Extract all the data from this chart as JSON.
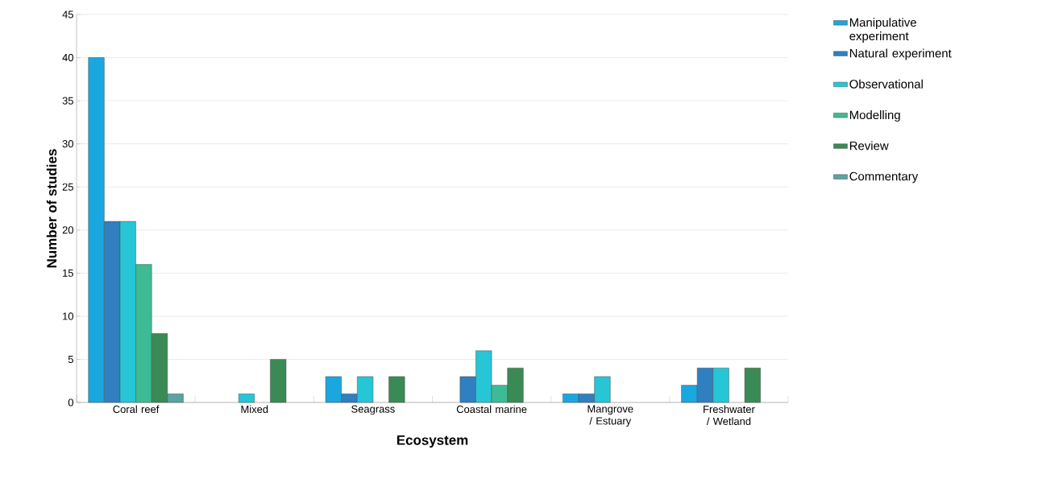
{
  "chart_data": {
    "type": "bar",
    "xlabel": "Ecosystem",
    "ylabel": "Number of studies",
    "categories": [
      "Coral reef",
      "Mixed",
      "Seagrass",
      "Coastal marine",
      "Mangrove / Estuary",
      "Freshwater / Wetland"
    ],
    "series": [
      {
        "name": "Manipulative experiment",
        "color": "#1aa7e0",
        "values": [
          40,
          0,
          3,
          0,
          1,
          2
        ]
      },
      {
        "name": "Natural experiment",
        "color": "#2f7fc1",
        "values": [
          21,
          0,
          1,
          3,
          1,
          4
        ]
      },
      {
        "name": "Observational",
        "color": "#26c6d6",
        "values": [
          21,
          1,
          3,
          6,
          3,
          4
        ]
      },
      {
        "name": "Modelling",
        "color": "#3dbb94",
        "values": [
          16,
          0,
          0,
          2,
          0,
          0
        ]
      },
      {
        "name": "Review",
        "color": "#3a8a55",
        "values": [
          8,
          5,
          3,
          4,
          0,
          4
        ]
      },
      {
        "name": "Commentary",
        "color": "#5ba3a3",
        "values": [
          1,
          0,
          0,
          0,
          0,
          0
        ]
      }
    ],
    "ylim": [
      0,
      45
    ],
    "yticks": [
      0,
      5,
      10,
      15,
      20,
      25,
      30,
      35,
      40,
      45
    ],
    "grid": "y",
    "legend": "right"
  }
}
